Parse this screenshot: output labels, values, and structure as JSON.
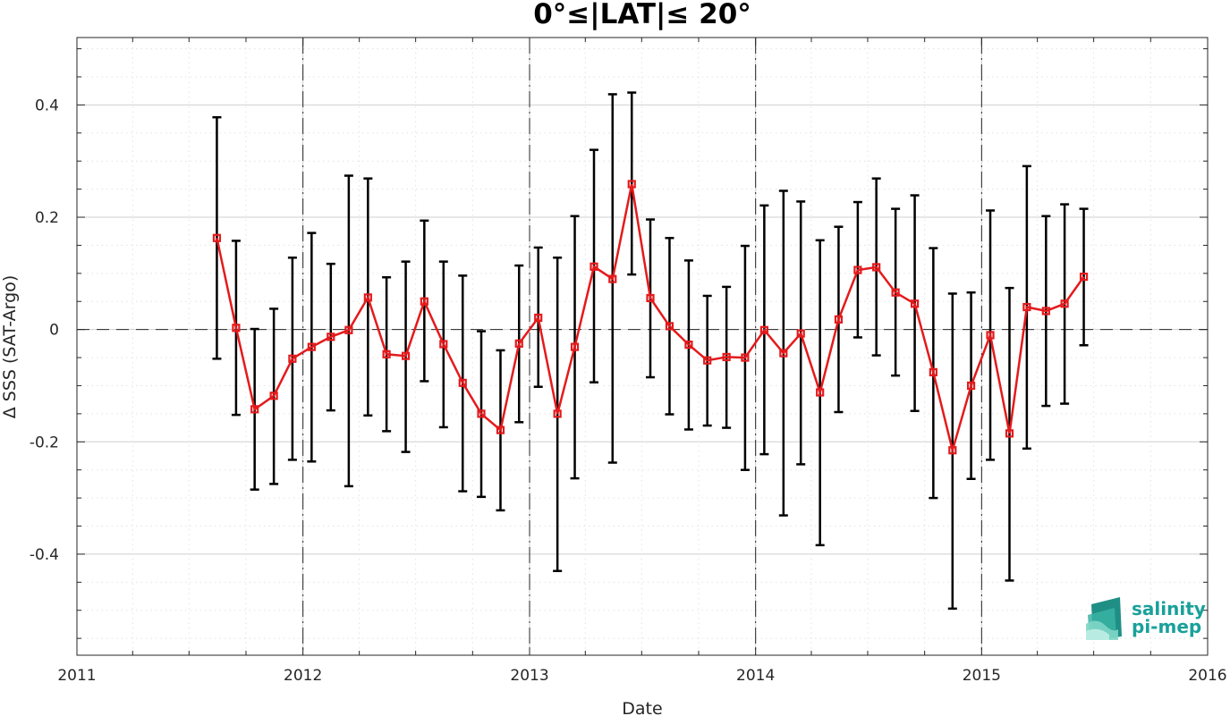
{
  "chart_data": {
    "type": "line",
    "title": "0°≤|LAT|≤ 20°",
    "xlabel": "Date",
    "ylabel": "Δ SSS (SAT-Argo)",
    "xlim": [
      "2011-01-01",
      "2016-01-01"
    ],
    "ylim": [
      -0.58,
      0.52
    ],
    "x_ticks": [
      "2011",
      "2012",
      "2013",
      "2014",
      "2015",
      "2016"
    ],
    "y_ticks": [
      0.4,
      0.2,
      0,
      -0.2,
      -0.4
    ],
    "y_tick_labels": [
      "0.4",
      "0.2",
      "0",
      "-0.2",
      "-0.4"
    ],
    "grid": true,
    "year_separators": [
      "2012",
      "2013",
      "2014",
      "2015"
    ],
    "zero_line": true,
    "series": [
      {
        "color": "#e41a1c",
        "errorbar_color": "#000000",
        "marker": "square",
        "x": [
          "2011-08",
          "2011-09",
          "2011-10",
          "2011-11",
          "2011-12",
          "2012-01",
          "2012-02",
          "2012-03",
          "2012-04",
          "2012-05",
          "2012-06",
          "2012-07",
          "2012-08",
          "2012-09",
          "2012-10",
          "2012-11",
          "2012-12",
          "2013-01",
          "2013-02",
          "2013-03",
          "2013-04",
          "2013-05",
          "2013-06",
          "2013-07",
          "2013-08",
          "2013-09",
          "2013-10",
          "2013-11",
          "2013-12",
          "2014-01",
          "2014-02",
          "2014-03",
          "2014-04",
          "2014-05",
          "2014-06",
          "2014-07",
          "2014-08",
          "2014-09",
          "2014-10",
          "2014-11",
          "2014-12",
          "2015-01",
          "2015-02",
          "2015-03",
          "2015-04",
          "2015-05",
          "2015-06"
        ],
        "y": [
          0.163,
          0.003,
          -0.142,
          -0.118,
          -0.052,
          -0.031,
          -0.013,
          -0.001,
          0.057,
          -0.044,
          -0.047,
          0.05,
          -0.026,
          -0.095,
          -0.15,
          -0.179,
          -0.025,
          0.021,
          -0.15,
          -0.031,
          0.112,
          0.09,
          0.259,
          0.056,
          0.006,
          -0.027,
          -0.055,
          -0.049,
          -0.05,
          -0.001,
          -0.042,
          -0.007,
          -0.112,
          0.018,
          0.106,
          0.111,
          0.066,
          0.046,
          -0.076,
          -0.215,
          -0.1,
          -0.01,
          -0.185,
          0.04,
          0.033,
          0.046,
          0.094
        ],
        "err_low": [
          -0.052,
          -0.152,
          -0.285,
          -0.275,
          -0.232,
          -0.235,
          -0.144,
          -0.279,
          -0.153,
          -0.181,
          -0.218,
          -0.092,
          -0.174,
          -0.288,
          -0.298,
          -0.322,
          -0.165,
          -0.102,
          -0.43,
          -0.265,
          -0.094,
          -0.237,
          0.098,
          -0.085,
          -0.151,
          -0.178,
          -0.171,
          -0.175,
          -0.25,
          -0.222,
          -0.331,
          -0.24,
          -0.384,
          -0.147,
          -0.014,
          -0.046,
          -0.082,
          -0.145,
          -0.3,
          -0.497,
          -0.266,
          -0.232,
          -0.447,
          -0.212,
          -0.136,
          -0.132,
          -0.028
        ],
        "err_high": [
          0.378,
          0.158,
          0.001,
          0.037,
          0.128,
          0.172,
          0.117,
          0.274,
          0.269,
          0.093,
          0.121,
          0.194,
          0.121,
          0.096,
          -0.003,
          -0.037,
          0.114,
          0.146,
          0.128,
          0.202,
          0.32,
          0.419,
          0.422,
          0.196,
          0.163,
          0.123,
          0.06,
          0.076,
          0.149,
          0.221,
          0.247,
          0.228,
          0.159,
          0.183,
          0.227,
          0.269,
          0.215,
          0.239,
          0.145,
          0.064,
          0.066,
          0.212,
          0.074,
          0.291,
          0.202,
          0.223,
          0.215
        ]
      }
    ]
  },
  "logo": {
    "line1": "salinity",
    "line2": "pi-mep"
  }
}
